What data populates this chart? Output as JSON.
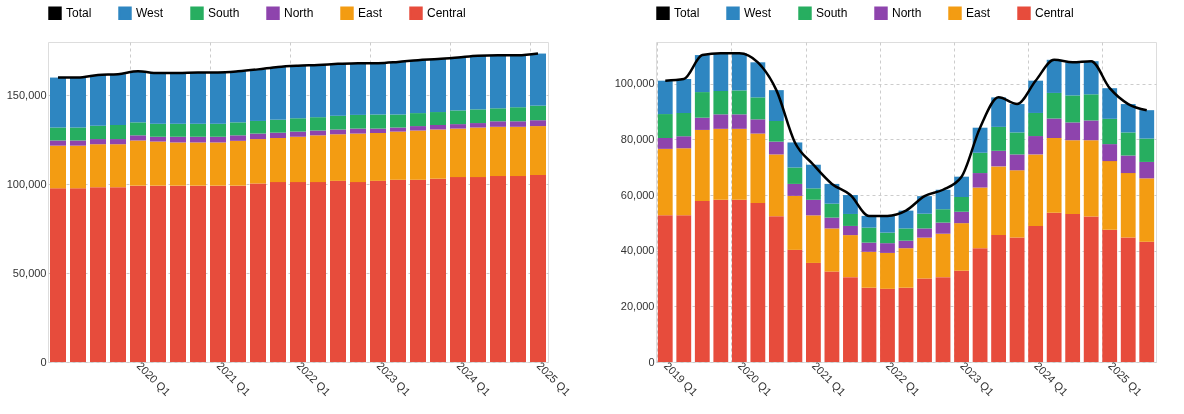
{
  "chart_data": [
    {
      "type": "bar",
      "stacked": true,
      "legend": "top",
      "grid": true,
      "ylim": [
        0,
        180000
      ],
      "yticks": [
        0,
        {
          "value": 50000,
          "label": "50,000"
        },
        {
          "value": 100000,
          "label": "100,000"
        },
        {
          "value": 150000,
          "label": "150,000"
        }
      ],
      "categories": [
        null,
        null,
        null,
        null,
        "2020 Q1",
        null,
        null,
        null,
        "2021 Q1",
        null,
        null,
        null,
        "2022 Q1",
        null,
        null,
        null,
        "2023 Q1",
        null,
        null,
        null,
        "2024 Q1",
        null,
        null,
        null,
        "2025 Q1"
      ],
      "series": [
        {
          "name": "Central",
          "color": "#e74c3c",
          "values": [
            97700,
            97700,
            98300,
            98300,
            99200,
            99200,
            99200,
            99200,
            99200,
            99200,
            100400,
            101200,
            101200,
            101200,
            101900,
            101200,
            101900,
            102500,
            102500,
            103100,
            104000,
            104000,
            104600,
            104600,
            105200
          ]
        },
        {
          "name": "East",
          "color": "#f39c12",
          "values": [
            24000,
            24000,
            24200,
            24200,
            25400,
            24800,
            24300,
            24300,
            24300,
            25200,
            25000,
            24800,
            25500,
            26300,
            26200,
            27300,
            26900,
            27100,
            27700,
            27700,
            27300,
            27900,
            27700,
            27700,
            27500
          ]
        },
        {
          "name": "North",
          "color": "#8e44ad",
          "values": [
            2900,
            2900,
            2900,
            2900,
            2900,
            2700,
            3200,
            3200,
            3200,
            3100,
            3100,
            3000,
            2900,
            2700,
            2700,
            2800,
            2500,
            2300,
            2500,
            2500,
            2500,
            2500,
            3100,
            3100,
            3300
          ]
        },
        {
          "name": "South",
          "color": "#27ae60",
          "values": [
            7300,
            7300,
            7500,
            7900,
            7300,
            7300,
            7300,
            7300,
            7300,
            7300,
            7100,
            7300,
            7500,
            7500,
            7700,
            7700,
            7900,
            7300,
            7300,
            7300,
            7700,
            7700,
            7300,
            7900,
            8200
          ]
        },
        {
          "name": "West",
          "color": "#2e86c1",
          "values": [
            28100,
            28100,
            28600,
            28600,
            28700,
            28500,
            28500,
            28900,
            28900,
            28700,
            29000,
            29700,
            29600,
            29400,
            29200,
            29100,
            28900,
            29600,
            29800,
            29800,
            29800,
            30200,
            29800,
            29200,
            29300
          ]
        },
        {
          "name": "Total",
          "type": "line",
          "color": "#000000",
          "values": [
            160000,
            160000,
            161500,
            161900,
            163500,
            162500,
            162500,
            162900,
            162900,
            163500,
            164600,
            166000,
            166700,
            167100,
            167700,
            168100,
            168100,
            168800,
            169800,
            170400,
            171300,
            172300,
            172500,
            172500,
            173500
          ]
        }
      ]
    },
    {
      "type": "bar",
      "stacked": true,
      "legend": "top",
      "grid": true,
      "ylim": [
        0,
        115000
      ],
      "yticks": [
        0,
        {
          "value": 20000,
          "label": "20,000"
        },
        {
          "value": 40000,
          "label": "40,000"
        },
        {
          "value": 60000,
          "label": "60,000"
        },
        {
          "value": 80000,
          "label": "80,000"
        },
        {
          "value": 100000,
          "label": "100,000"
        }
      ],
      "categories": [
        "2019 Q1",
        null,
        null,
        null,
        "2020 Q1",
        null,
        null,
        null,
        "2021 Q1",
        null,
        null,
        null,
        "2022 Q1",
        null,
        null,
        null,
        "2023 Q1",
        null,
        null,
        null,
        "2024 Q1",
        null,
        null,
        null,
        "2025 Q1",
        null,
        null
      ],
      "series": [
        {
          "name": "Central",
          "color": "#e74c3c",
          "values": [
            52700,
            52700,
            57900,
            58300,
            58300,
            57100,
            52400,
            40300,
            35600,
            32500,
            30500,
            26700,
            26300,
            26700,
            30000,
            30500,
            32800,
            40900,
            45600,
            44700,
            48900,
            53600,
            53200,
            52300,
            47500,
            44700,
            43200
          ]
        },
        {
          "name": "East",
          "color": "#f39c12",
          "values": [
            23900,
            24100,
            25500,
            25500,
            25500,
            25000,
            22200,
            19400,
            17100,
            15500,
            15100,
            12900,
            12900,
            14200,
            14700,
            15600,
            17100,
            21800,
            24700,
            24200,
            25700,
            26900,
            26500,
            27400,
            24700,
            23200,
            22800
          ]
        },
        {
          "name": "North",
          "color": "#8e44ad",
          "values": [
            3900,
            4300,
            4400,
            5200,
            5200,
            5100,
            4600,
            4300,
            5600,
            3900,
            3300,
            3300,
            3500,
            2700,
            3300,
            4000,
            4100,
            5200,
            5600,
            5700,
            6600,
            7000,
            6400,
            7100,
            6100,
            6300,
            5900
          ]
        },
        {
          "name": "South",
          "color": "#27ae60",
          "values": [
            8600,
            8400,
            9200,
            8400,
            8600,
            7900,
            7400,
            5900,
            4100,
            5000,
            4300,
            5400,
            3800,
            4400,
            5300,
            4800,
            5300,
            7300,
            8600,
            7900,
            8300,
            9200,
            9700,
            9400,
            9100,
            8300,
            8400
          ]
        },
        {
          "name": "West",
          "color": "#2e86c1",
          "values": [
            12000,
            12200,
            13300,
            13600,
            13400,
            12600,
            11100,
            9000,
            8500,
            7100,
            6800,
            4200,
            6000,
            6400,
            6300,
            7000,
            7300,
            9000,
            10600,
            10200,
            11600,
            11900,
            11900,
            11900,
            11000,
            10200,
            10200
          ]
        },
        {
          "name": "Total",
          "type": "line",
          "color": "#000000",
          "values": [
            101100,
            101700,
            110300,
            111000,
            111000,
            107700,
            97700,
            78900,
            70900,
            64000,
            60000,
            52500,
            52500,
            54400,
            59600,
            61900,
            66600,
            84200,
            95100,
            92700,
            101100,
            108600,
            107700,
            108100,
            98400,
            92700,
            90500
          ]
        }
      ]
    }
  ]
}
